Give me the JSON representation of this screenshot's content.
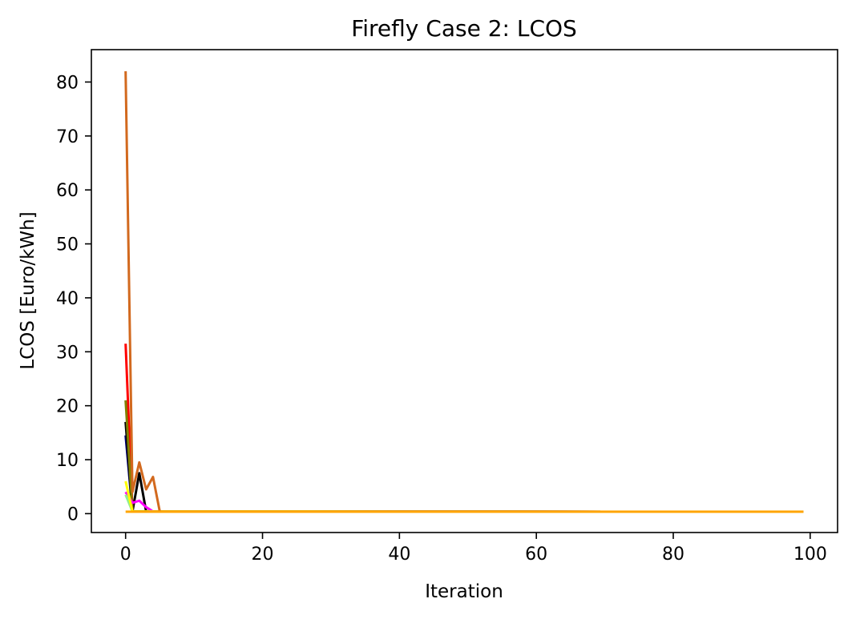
{
  "chart_data": {
    "type": "line",
    "title": "Firefly Case 2: LCOS",
    "xlabel": "Iteration",
    "ylabel": "LCOS [Euro/kWh]",
    "xlim": [
      -5,
      104
    ],
    "ylim": [
      -3.5,
      86
    ],
    "x_ticks": [
      0,
      20,
      40,
      60,
      80,
      100
    ],
    "y_ticks": [
      0,
      10,
      20,
      30,
      40,
      50,
      60,
      70,
      80
    ],
    "grid": false,
    "legend": "none",
    "final_value": 0.35,
    "last_iteration": 99,
    "series": [
      {
        "color": "#000080",
        "points": [
          [
            0,
            14.5
          ],
          [
            1,
            0.4
          ]
        ]
      },
      {
        "color": "#000000",
        "points": [
          [
            0,
            17
          ],
          [
            1,
            0.4
          ],
          [
            2,
            7.5
          ],
          [
            3,
            0.4
          ]
        ]
      },
      {
        "color": "#ff0000",
        "points": [
          [
            0,
            31.5
          ],
          [
            1,
            0.4
          ]
        ]
      },
      {
        "color": "#808000",
        "points": [
          [
            0,
            21
          ],
          [
            1,
            0.4
          ]
        ]
      },
      {
        "color": "#ff00ff",
        "points": [
          [
            0,
            4
          ],
          [
            1,
            2
          ],
          [
            2,
            2.4
          ],
          [
            3,
            1.2
          ],
          [
            4,
            0.4
          ]
        ]
      },
      {
        "color": "#90ee90",
        "points": [
          [
            0,
            3.5
          ],
          [
            1,
            0.4
          ]
        ]
      },
      {
        "color": "#ffff00",
        "points": [
          [
            0,
            6
          ],
          [
            1,
            0.4
          ]
        ]
      },
      {
        "color": "#d2691e",
        "points": [
          [
            0,
            82
          ],
          [
            1,
            4
          ],
          [
            2,
            9.5
          ],
          [
            3,
            4.5
          ],
          [
            4,
            6.8
          ],
          [
            5,
            0.35
          ]
        ]
      },
      {
        "color": "#ffa500",
        "points": [
          [
            0,
            0.35
          ]
        ]
      }
    ]
  }
}
